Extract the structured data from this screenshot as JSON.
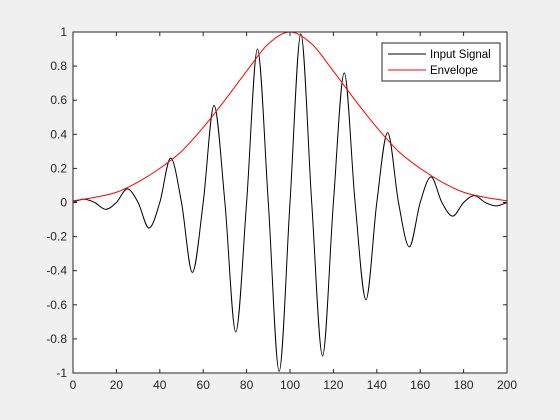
{
  "chart_data": {
    "type": "line",
    "title": "",
    "xlabel": "",
    "ylabel": "",
    "xlim": [
      0,
      200
    ],
    "ylim": [
      -1,
      1
    ],
    "x_ticks": [
      0,
      20,
      40,
      60,
      80,
      100,
      120,
      140,
      160,
      180,
      200
    ],
    "y_ticks": [
      -1,
      -0.8,
      -0.6,
      -0.4,
      -0.2,
      0,
      0.2,
      0.4,
      0.6,
      0.8,
      1
    ],
    "x_tick_labels": [
      "0",
      "20",
      "40",
      "60",
      "80",
      "100",
      "120",
      "140",
      "160",
      "180",
      "200"
    ],
    "y_tick_labels": [
      "-1",
      "-0.8",
      "-0.6",
      "-0.4",
      "-0.2",
      "0",
      "0.2",
      "0.4",
      "0.6",
      "0.8",
      "1"
    ],
    "grid": false,
    "legend_position": "top-right",
    "series": [
      {
        "name": "Input Signal",
        "color": "#000000",
        "x": [
          0,
          5,
          10,
          15,
          20,
          25,
          30,
          35,
          40,
          45,
          50,
          55,
          60,
          65,
          70,
          75,
          80,
          85,
          90,
          95,
          100,
          105,
          110,
          115,
          120,
          125,
          130,
          135,
          140,
          145,
          150,
          155,
          160,
          165,
          170,
          175,
          180,
          185,
          190,
          195,
          200
        ],
        "y": [
          0,
          0.02,
          0,
          -0.04,
          0,
          0.08,
          0,
          -0.15,
          0,
          0.26,
          0,
          -0.41,
          0,
          0.57,
          0,
          -0.76,
          0,
          0.9,
          0,
          -0.99,
          0,
          0.99,
          0,
          -0.9,
          0,
          0.76,
          0,
          -0.57,
          0,
          0.41,
          0,
          -0.26,
          0,
          0.15,
          0,
          -0.08,
          0,
          0.04,
          0,
          -0.02,
          0
        ]
      },
      {
        "name": "Envelope",
        "color": "#ff0000",
        "x": [
          0,
          10,
          20,
          30,
          40,
          50,
          60,
          70,
          80,
          90,
          100,
          110,
          120,
          130,
          140,
          150,
          160,
          170,
          180,
          190,
          200
        ],
        "y": [
          0.01,
          0.03,
          0.06,
          0.12,
          0.2,
          0.3,
          0.44,
          0.6,
          0.77,
          0.93,
          1,
          0.93,
          0.77,
          0.6,
          0.44,
          0.3,
          0.2,
          0.12,
          0.06,
          0.03,
          0.01
        ]
      }
    ]
  }
}
